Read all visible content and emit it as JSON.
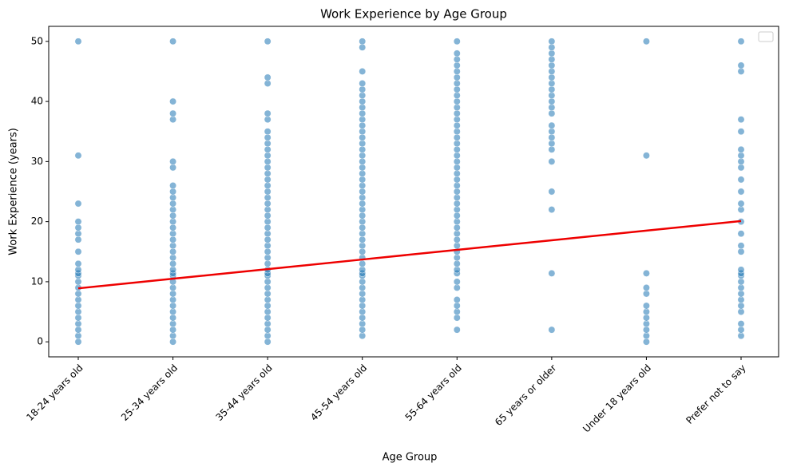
{
  "chart_data": {
    "type": "strip",
    "title": "Work Experience by Age Group",
    "x_label": "Age Group",
    "y_label": "Work Experience (years)",
    "categories": [
      "18-24 years old",
      "25-34 years old",
      "35-44 years old",
      "45-54 years old",
      "55-64 years old",
      "65 years or older",
      "Under 18 years old",
      "Prefer not to say"
    ],
    "color": "#1f77b4",
    "values": [
      [
        0,
        1,
        2,
        3,
        4,
        5,
        6,
        7,
        8,
        9,
        10,
        11,
        11.4,
        12,
        13,
        15,
        17,
        18,
        19,
        20,
        23,
        31,
        50
      ],
      [
        0,
        1,
        2,
        3,
        4,
        5,
        6,
        7,
        8,
        9,
        10,
        11,
        11.4,
        12,
        13,
        14,
        15,
        16,
        17,
        18,
        19,
        20,
        21,
        22,
        23,
        24,
        25,
        26,
        29,
        30,
        37,
        38,
        40,
        50
      ],
      [
        0,
        1,
        2,
        3,
        4,
        5,
        6,
        7,
        8,
        9,
        10,
        11,
        11.4,
        12,
        13,
        14,
        15,
        16,
        17,
        18,
        19,
        20,
        21,
        22,
        23,
        24,
        25,
        26,
        27,
        28,
        29,
        30,
        31,
        32,
        33,
        34,
        35,
        37,
        38,
        43,
        44,
        50
      ],
      [
        1,
        2,
        3,
        4,
        5,
        6,
        7,
        8,
        9,
        10,
        11,
        11.4,
        12,
        13,
        14,
        15,
        16,
        17,
        18,
        19,
        20,
        21,
        22,
        23,
        24,
        25,
        26,
        27,
        28,
        29,
        30,
        31,
        32,
        33,
        34,
        35,
        36,
        37,
        38,
        39,
        40,
        41,
        42,
        43,
        45,
        49,
        50
      ],
      [
        2,
        4,
        5,
        6,
        7,
        9,
        10,
        11.4,
        12,
        13,
        14,
        15,
        16,
        17,
        18,
        19,
        20,
        21,
        22,
        23,
        24,
        25,
        26,
        27,
        28,
        29,
        30,
        31,
        32,
        33,
        34,
        35,
        36,
        37,
        38,
        39,
        40,
        41,
        42,
        43,
        44,
        45,
        46,
        47,
        48,
        50
      ],
      [
        2,
        11.4,
        22,
        25,
        30,
        32,
        33,
        34,
        35,
        36,
        38,
        39,
        40,
        41,
        42,
        43,
        44,
        45,
        46,
        47,
        48,
        49,
        50
      ],
      [
        0,
        1,
        2,
        3,
        4,
        5,
        6,
        8,
        9,
        11.4,
        31,
        50
      ],
      [
        1,
        2,
        3,
        5,
        6,
        7,
        8,
        9,
        10,
        11,
        11.4,
        12,
        15,
        16,
        18,
        20,
        22,
        23,
        25,
        27,
        29,
        30,
        31,
        32,
        35,
        37,
        45,
        46,
        50
      ]
    ],
    "trend": {
      "color": "#ee0000",
      "values": [
        8.9,
        10.5,
        12.1,
        13.7,
        15.3,
        16.9,
        18.5,
        20.1
      ]
    },
    "ylim": [
      -2.5,
      52.5
    ],
    "yticks": [
      0,
      10,
      20,
      30,
      40,
      50
    ],
    "legend": "upper right"
  }
}
